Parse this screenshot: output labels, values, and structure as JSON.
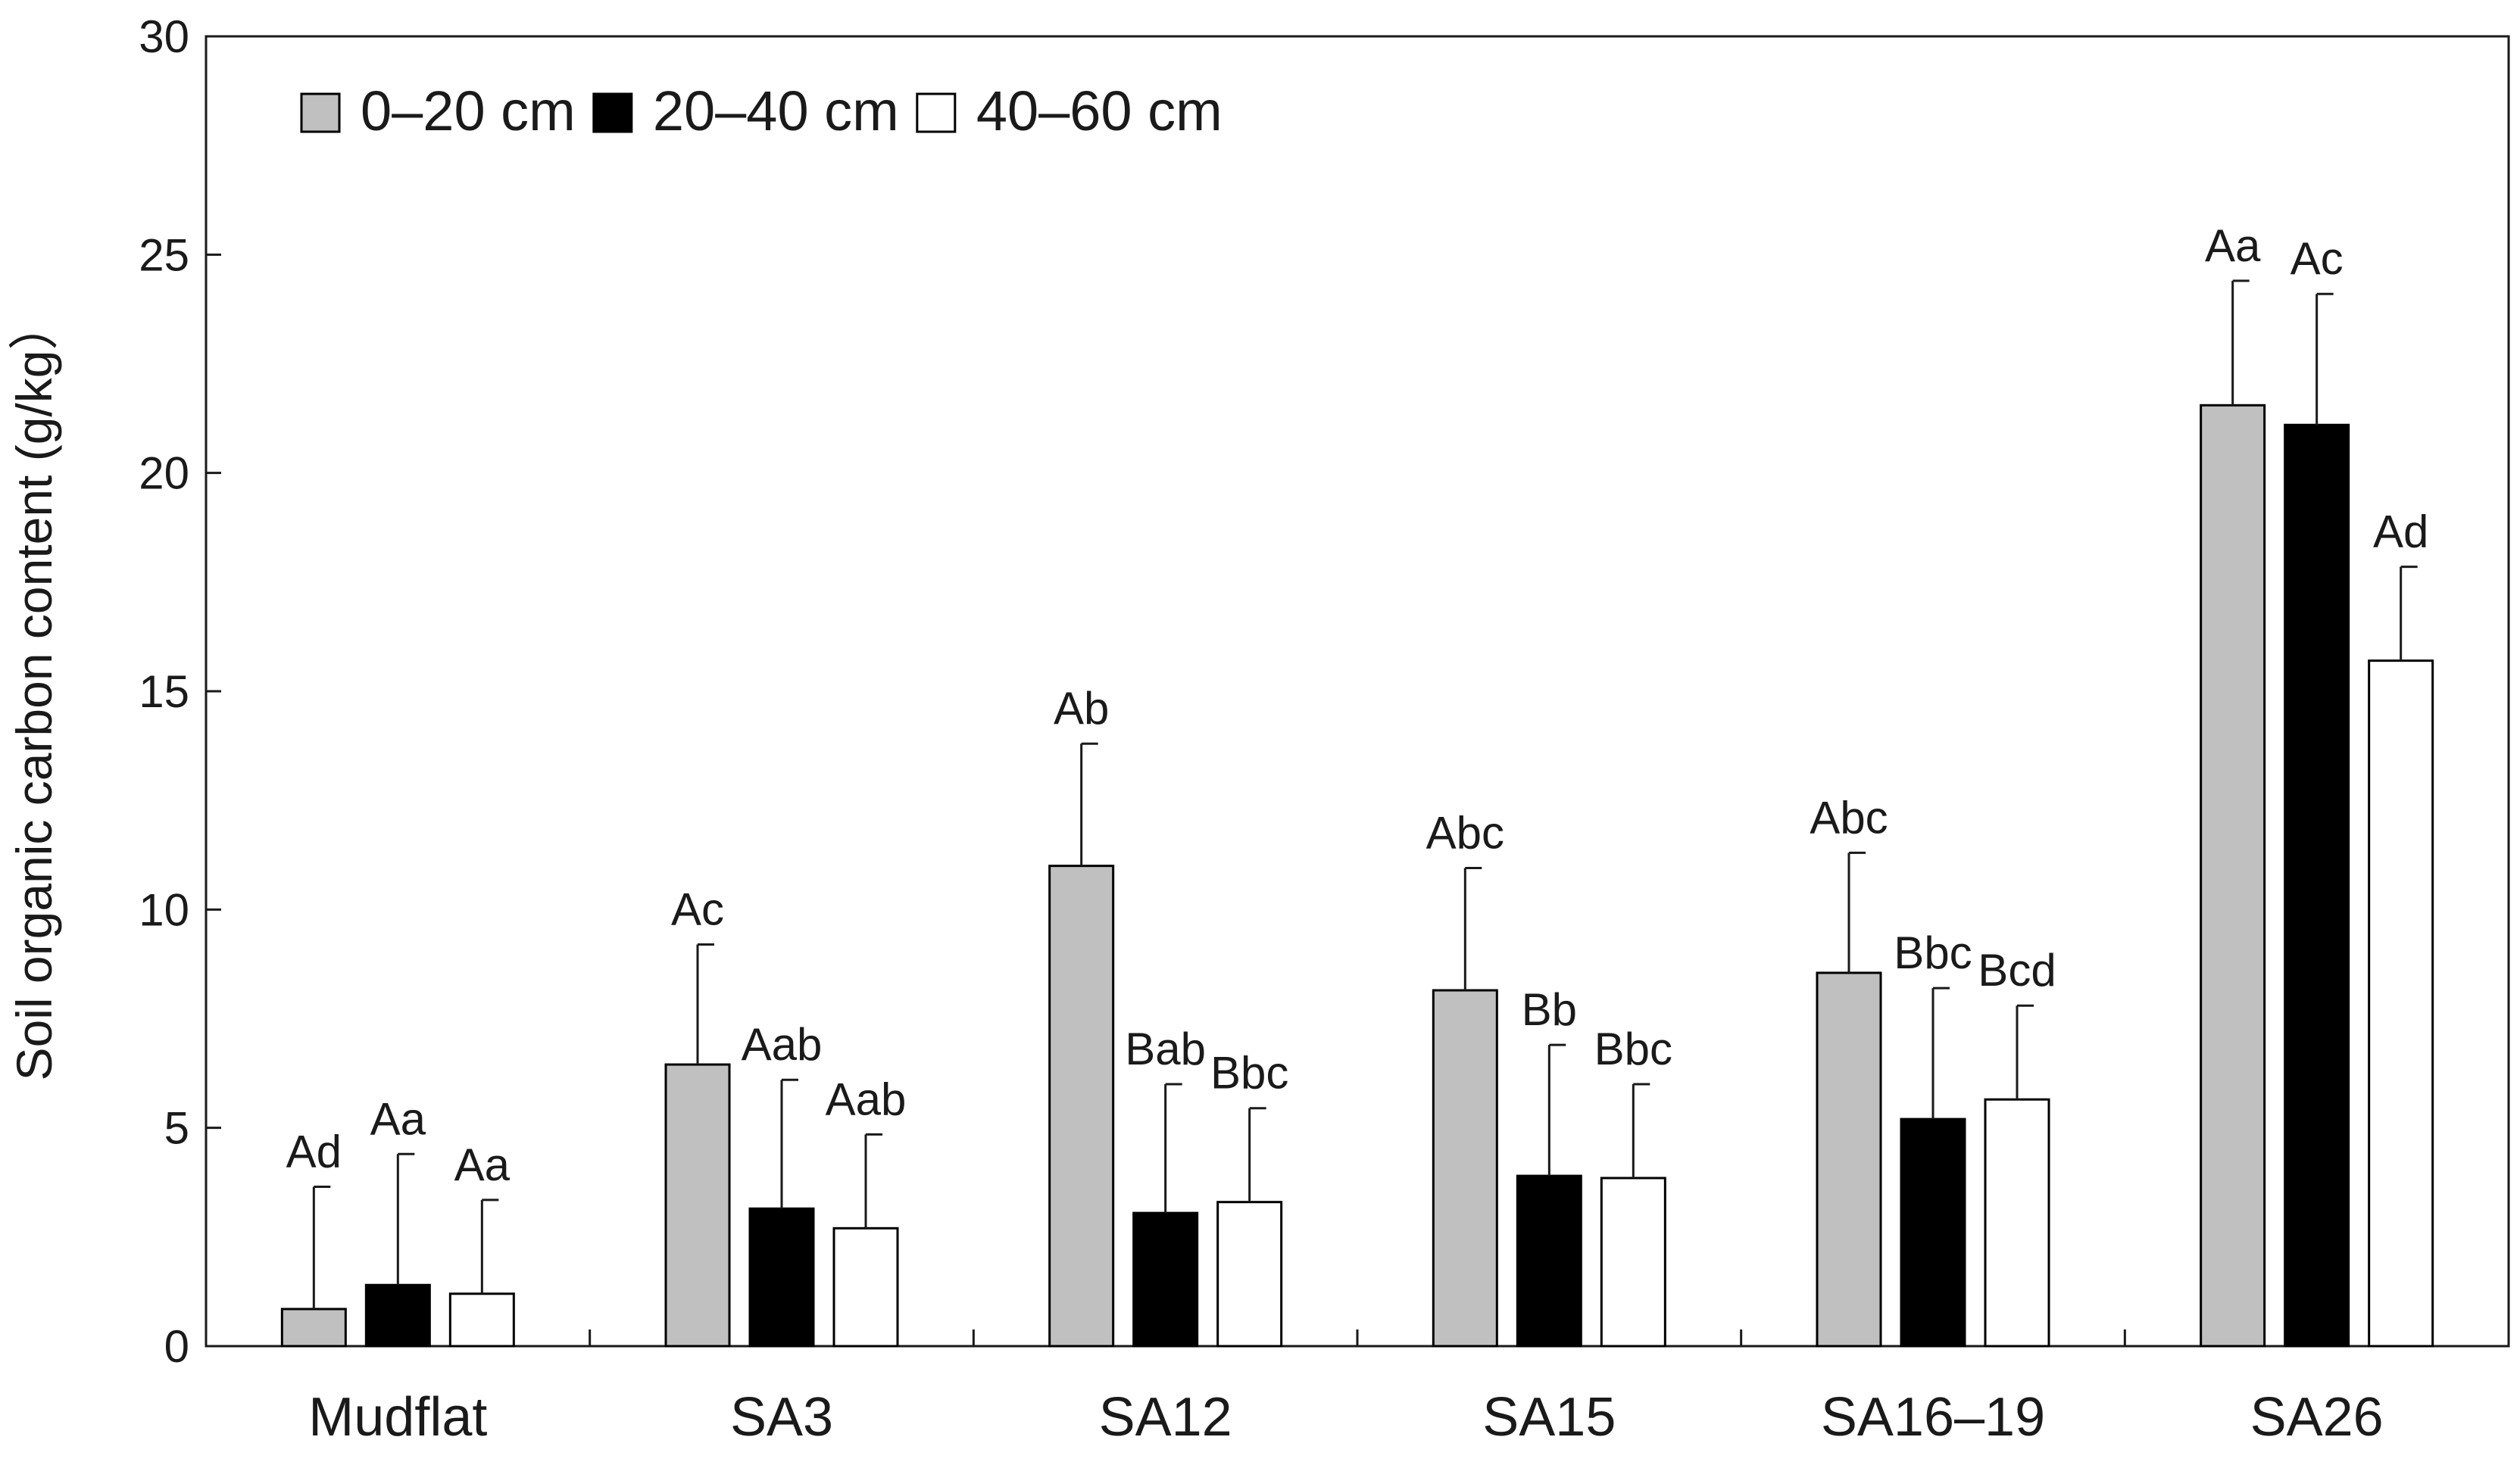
{
  "chart_data": {
    "type": "bar",
    "title": "",
    "xlabel": "",
    "ylabel": "Soil organic carbon content (g/kg）",
    "ylim": [
      0,
      30
    ],
    "yticks": [
      0,
      5,
      10,
      15,
      20,
      25,
      30
    ],
    "categories": [
      "Mudflat",
      "SA3",
      "SA12",
      "SA15",
      "SA16–19",
      "SA26"
    ],
    "legend_position": "top-left",
    "series": [
      {
        "name": "0–20 cm",
        "color": "#c0c0c0",
        "values": [
          0.85,
          6.45,
          11.0,
          8.15,
          8.55,
          21.55
        ],
        "errors": [
          2.8,
          2.75,
          2.8,
          2.8,
          2.75,
          2.85
        ],
        "labels": [
          "Ad",
          "Ac",
          "Ab",
          "Abc",
          "Abc",
          "Aa"
        ]
      },
      {
        "name": "20–40 cm",
        "color": "#000000",
        "values": [
          1.4,
          3.15,
          3.05,
          3.9,
          5.2,
          21.1
        ],
        "errors": [
          3.0,
          2.95,
          2.95,
          3.0,
          3.0,
          3.0
        ],
        "labels": [
          "Aa",
          "Aab",
          "Bab",
          "Bb",
          "Bbc",
          "Ac"
        ]
      },
      {
        "name": "40–60 cm",
        "color": "#ffffff",
        "values": [
          1.2,
          2.7,
          3.3,
          3.85,
          5.65,
          15.7
        ],
        "errors": [
          2.15,
          2.15,
          2.15,
          2.15,
          2.15,
          2.15
        ],
        "labels": [
          "Aa",
          "Aab",
          "Bbc",
          "Bbc",
          "Bcd",
          "Ad"
        ]
      }
    ]
  }
}
